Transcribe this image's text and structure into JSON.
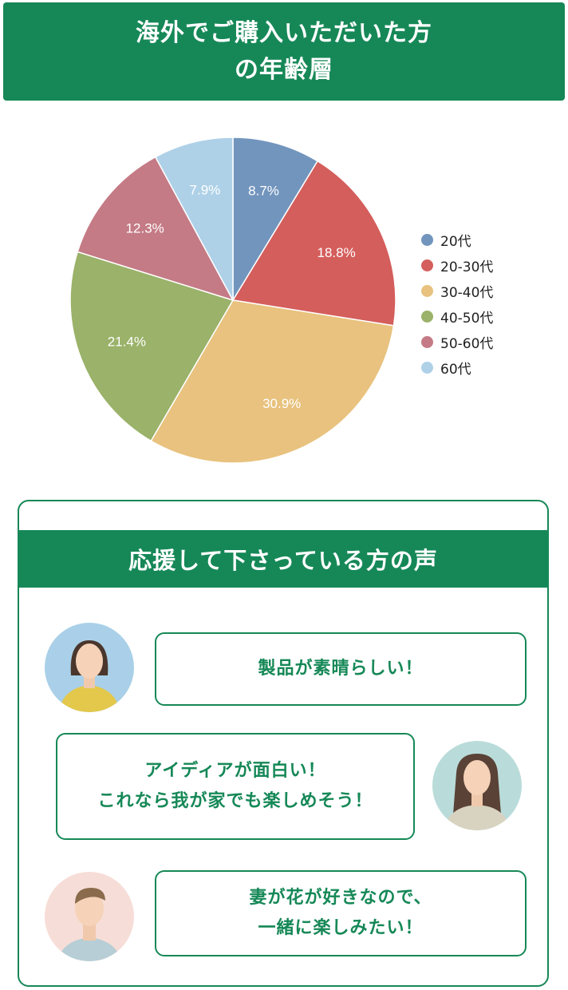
{
  "banner": {
    "line1": "海外でご購入いただいた方",
    "line2": "の年齢層"
  },
  "chart_data": {
    "type": "pie",
    "categories": [
      "20代",
      "20-30代",
      "30-40代",
      "40-50代",
      "50-60代",
      "60代"
    ],
    "values": [
      8.7,
      18.8,
      30.9,
      21.4,
      12.3,
      7.9
    ],
    "labels": [
      "8.7%",
      "18.8%",
      "30.9%",
      "21.4%",
      "12.3%",
      "7.9%"
    ],
    "colors": [
      "#7295BD",
      "#D45E5C",
      "#E8C27E",
      "#9AB269",
      "#C47B86",
      "#AED1E8"
    ],
    "legend_position": "right"
  },
  "voices": {
    "title": "応援して下さっている方の声",
    "items": [
      {
        "lines": [
          "製品が素晴らしい！"
        ],
        "avatar": "woman-avatar-icon"
      },
      {
        "lines": [
          "アイディアが面白い！",
          "これなら我が家でも楽しめそう！"
        ],
        "avatar": "woman-avatar-icon"
      },
      {
        "lines": [
          "妻が花が好きなので、",
          "一緒に楽しみたい！"
        ],
        "avatar": "man-avatar-icon"
      }
    ]
  }
}
